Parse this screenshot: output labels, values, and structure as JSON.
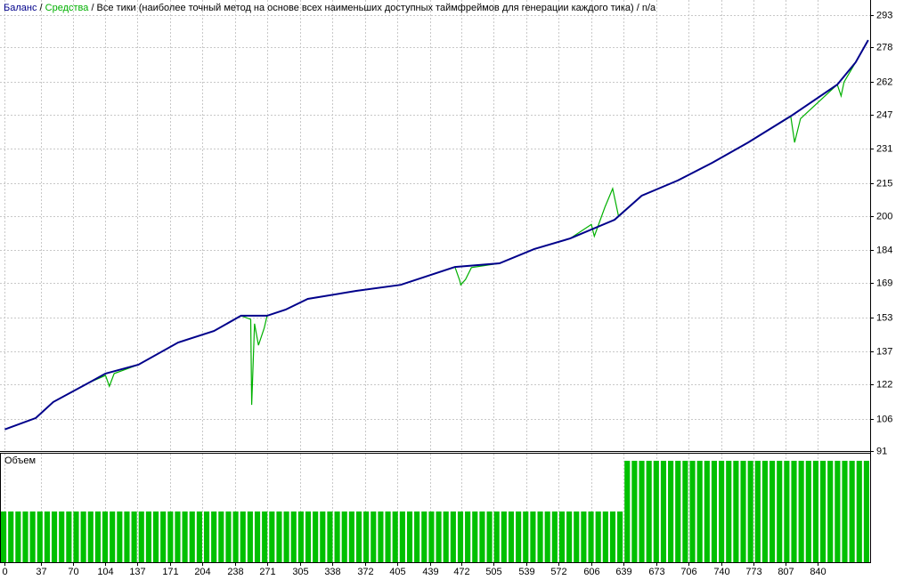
{
  "chart_data": {
    "type": "line",
    "title": "/ Все тики (наиболее точный метод на основе всех наименьших доступных таймфреймов для генерации каждого тика) / n/a",
    "legend_separator": "/",
    "xlim": [
      -5,
      894
    ],
    "ylim": [
      91,
      300
    ],
    "grid": true,
    "xticks": [
      0,
      37,
      70,
      104,
      137,
      171,
      204,
      238,
      271,
      305,
      338,
      372,
      405,
      439,
      472,
      505,
      539,
      572,
      606,
      639,
      673,
      706,
      740,
      773,
      807,
      840
    ],
    "yticks": [
      91,
      106,
      122,
      137,
      153,
      169,
      184,
      200,
      215,
      231,
      247,
      262,
      278,
      293
    ],
    "series": [
      {
        "name": "Средства",
        "color": "#00b000",
        "x": [
          0,
          32,
          50,
          87,
          104,
          108,
          113,
          138,
          179,
          216,
          244,
          254,
          255,
          258,
          262,
          268,
          271,
          290,
          313,
          363,
          409,
          465,
          470,
          471,
          476,
          482,
          511,
          547,
          584,
          606,
          609,
          620,
          628,
          634,
          658,
          695,
          731,
          768,
          812,
          816,
          822,
          860,
          864,
          867,
          879,
          892
        ],
        "values": [
          101,
          106.3,
          113.7,
          122.7,
          126,
          121,
          126.9,
          131,
          141.3,
          146.6,
          153.7,
          152,
          112.4,
          150,
          140,
          148,
          153.7,
          156.5,
          161.5,
          165.2,
          168,
          176.3,
          170,
          168,
          170.5,
          176,
          178,
          184.6,
          189.5,
          196,
          190.5,
          204,
          212.6,
          200,
          209.3,
          216.3,
          224.6,
          234,
          246,
          234,
          245,
          260.8,
          255.5,
          262,
          271.1,
          281.4
        ]
      },
      {
        "name": "Баланс",
        "color": "#00008b",
        "x": [
          0,
          32,
          50,
          87,
          104,
          138,
          179,
          216,
          244,
          271,
          290,
          313,
          363,
          409,
          465,
          511,
          547,
          584,
          630,
          658,
          695,
          731,
          768,
          814,
          860,
          879,
          892
        ],
        "values": [
          101,
          106.3,
          113.7,
          122.7,
          126.9,
          131,
          141.3,
          146.6,
          153.7,
          153.7,
          156.5,
          161.5,
          165.2,
          168,
          176.3,
          178,
          184.6,
          189.5,
          198.2,
          209.3,
          216.3,
          224.6,
          234,
          246.8,
          260.8,
          271.1,
          281.4
        ]
      }
    ],
    "volume": {
      "type": "bar",
      "label": "Объем",
      "color": "#00c000",
      "ylim": [
        0,
        0.214
      ],
      "values": [
        0.1,
        0.1,
        0.1,
        0.1,
        0.1,
        0.1,
        0.1,
        0.1,
        0.1,
        0.1,
        0.1,
        0.1,
        0.1,
        0.1,
        0.1,
        0.1,
        0.1,
        0.1,
        0.1,
        0.1,
        0.1,
        0.1,
        0.1,
        0.1,
        0.1,
        0.1,
        0.1,
        0.1,
        0.1,
        0.1,
        0.1,
        0.1,
        0.1,
        0.1,
        0.1,
        0.1,
        0.1,
        0.1,
        0.1,
        0.1,
        0.1,
        0.1,
        0.1,
        0.1,
        0.1,
        0.1,
        0.1,
        0.1,
        0.1,
        0.1,
        0.1,
        0.1,
        0.1,
        0.1,
        0.1,
        0.1,
        0.1,
        0.1,
        0.1,
        0.1,
        0.1,
        0.1,
        0.1,
        0.1,
        0.1,
        0.1,
        0.1,
        0.1,
        0.1,
        0.1,
        0.1,
        0.1,
        0.1,
        0.1,
        0.1,
        0.1,
        0.1,
        0.1,
        0.1,
        0.1,
        0.1,
        0.1,
        0.1,
        0.1,
        0.1,
        0.1,
        0.2,
        0.2,
        0.2,
        0.2,
        0.2,
        0.2,
        0.2,
        0.2,
        0.2,
        0.2,
        0.2,
        0.2,
        0.2,
        0.2,
        0.2,
        0.2,
        0.2,
        0.2,
        0.2,
        0.2,
        0.2,
        0.2,
        0.2,
        0.2,
        0.2,
        0.2,
        0.2,
        0.2,
        0.2,
        0.2,
        0.2,
        0.2,
        0.2,
        0.2
      ]
    }
  }
}
